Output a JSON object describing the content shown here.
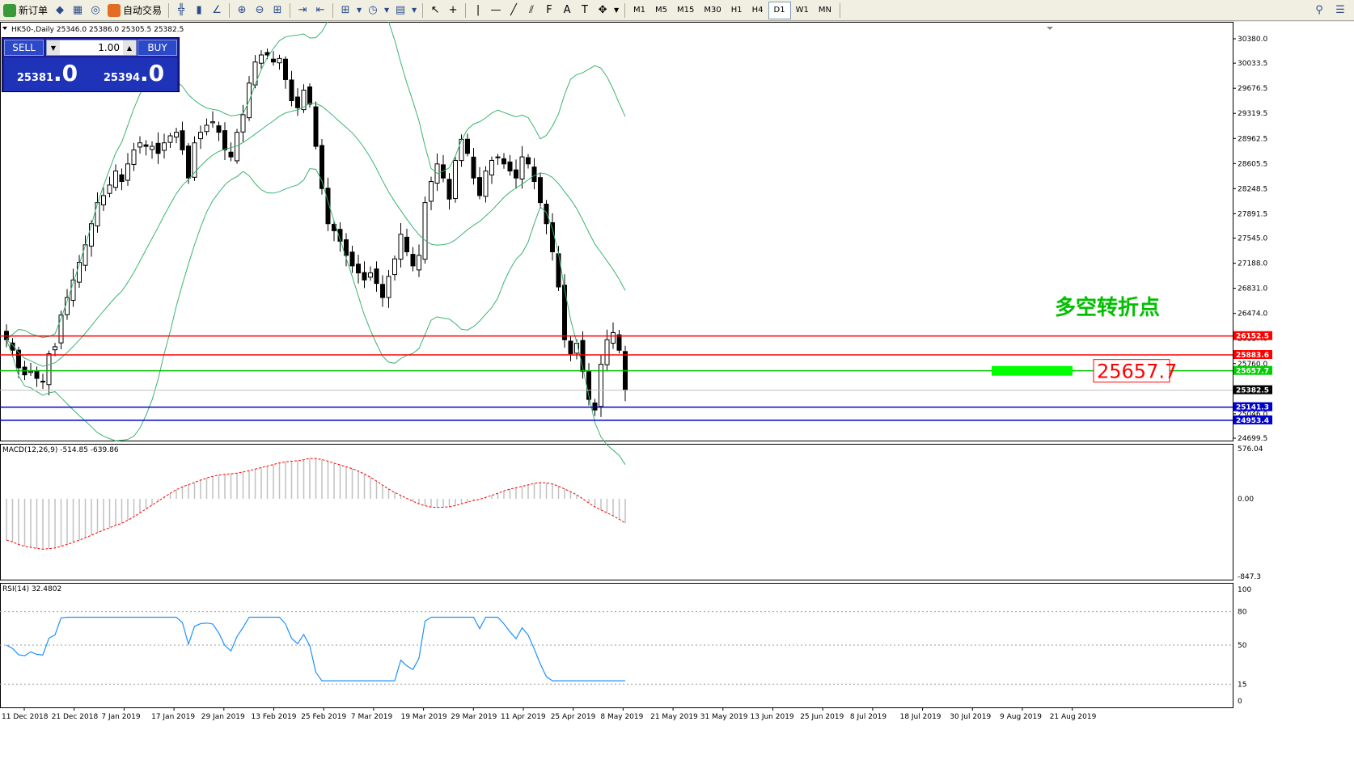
{
  "toolbar": {
    "new_order": "新订单",
    "auto_trading": "自动交易",
    "timeframes": [
      "M1",
      "M5",
      "M15",
      "M30",
      "H1",
      "H4",
      "D1",
      "W1",
      "MN"
    ],
    "active_timeframe": "D1"
  },
  "chart": {
    "header": "HK50-,Daily  25346.0 25386.0 25305.5 25382.5",
    "macd_label": "MACD(12,26,9) -514.85 -639.86",
    "rsi_label": "RSI(14) 32.4802",
    "annotation_cn": "多空转折点",
    "annotation_price": "25657.7",
    "x_labels": [
      "11 Dec 2018",
      "21 Dec 2018",
      "7 Jan 2019",
      "17 Jan 2019",
      "29 Jan 2019",
      "13 Feb 2019",
      "25 Feb 2019",
      "7 Mar 2019",
      "19 Mar 2019",
      "29 Mar 2019",
      "11 Apr 2019",
      "25 Apr 2019",
      "8 May 2019",
      "21 May 2019",
      "31 May 2019",
      "13 Jun 2019",
      "25 Jun 2019",
      "8 Jul 2019",
      "18 Jul 2019",
      "30 Jul 2019",
      "9 Aug 2019",
      "21 Aug 2019"
    ],
    "price_axis": [
      "30380.0",
      "30033.5",
      "29676.5",
      "29319.5",
      "28962.5",
      "28605.5",
      "28248.5",
      "27891.5",
      "27545.0",
      "27188.0",
      "26831.0",
      "26474.0",
      "26117.0",
      "25760.0",
      "25046.0",
      "24699.5"
    ],
    "price_tags": [
      {
        "text": "26152.5",
        "color": "#ff0000"
      },
      {
        "text": "25883.6",
        "color": "#ff0000"
      },
      {
        "text": "25657.7",
        "color": "#00d000"
      },
      {
        "text": "25382.5",
        "color": "#000000"
      },
      {
        "text": "25141.3",
        "color": "#0000cc"
      },
      {
        "text": "24953.4",
        "color": "#0000cc"
      }
    ],
    "macd_axis": [
      "576.04",
      "0.00",
      "-847.3"
    ],
    "rsi_axis": [
      "100",
      "80",
      "50",
      "15",
      "0"
    ],
    "colors": {
      "resistance": "#ff0000",
      "pivot": "#00ff00",
      "support": "#0000cc",
      "bands": "#3cb371",
      "rsi": "#1e90ff",
      "macd_signal": "#ff0000"
    }
  },
  "trade": {
    "sell_label": "SELL",
    "buy_label": "BUY",
    "lot": "1.00",
    "sell_big": "25381",
    "sell_small": ".0",
    "buy_big": "25394",
    "buy_small": ".0"
  },
  "chart_data": {
    "type": "candlestick",
    "symbol": "HK50-",
    "timeframe": "Daily",
    "ohlc_last": {
      "open": 25346.0,
      "high": 25386.0,
      "low": 25305.5,
      "close": 25382.5
    },
    "close_path": [
      26100,
      25950,
      25700,
      25600,
      25650,
      25550,
      25500,
      25900,
      26000,
      26450,
      26700,
      26950,
      27200,
      27450,
      27750,
      28050,
      28150,
      28300,
      28500,
      28350,
      28600,
      28800,
      28900,
      28850,
      28850,
      28750,
      28900,
      29000,
      29050,
      28800,
      28400,
      28900,
      29050,
      29150,
      29200,
      29050,
      28800,
      28700,
      29050,
      29300,
      29750,
      30050,
      30150,
      30150,
      30050,
      30100,
      29800,
      29500,
      29400,
      29650,
      29450,
      28850,
      28250,
      27750,
      27650,
      27500,
      27300,
      27150,
      27050,
      26950,
      27050,
      26900,
      26700,
      27000,
      27250,
      27600,
      27350,
      27150,
      27300,
      28050,
      28350,
      28600,
      28400,
      28100,
      28650,
      28950,
      28750,
      28400,
      28150,
      28500,
      28650,
      28700,
      28600,
      28500,
      28400,
      28700,
      28600,
      28350,
      28050,
      27750,
      27350,
      26850,
      26100,
      25900,
      26050,
      25650,
      25250,
      25100,
      25750,
      26100,
      26200,
      25950,
      25382.5
    ],
    "horizontal_lines": [
      {
        "price": 26152.5,
        "color": "red"
      },
      {
        "price": 25883.6,
        "color": "red"
      },
      {
        "price": 25657.7,
        "color": "green"
      },
      {
        "price": 25141.3,
        "color": "blue"
      },
      {
        "price": 24953.4,
        "color": "blue"
      }
    ],
    "indicators": {
      "bollinger": true,
      "macd": {
        "params": [
          12,
          26,
          9
        ],
        "main": -514.85,
        "signal": -639.86
      },
      "rsi": {
        "period": 14,
        "value": 32.4802,
        "levels": [
          80,
          50,
          15
        ]
      }
    },
    "ylim": [
      24699.5,
      30380.0
    ]
  }
}
